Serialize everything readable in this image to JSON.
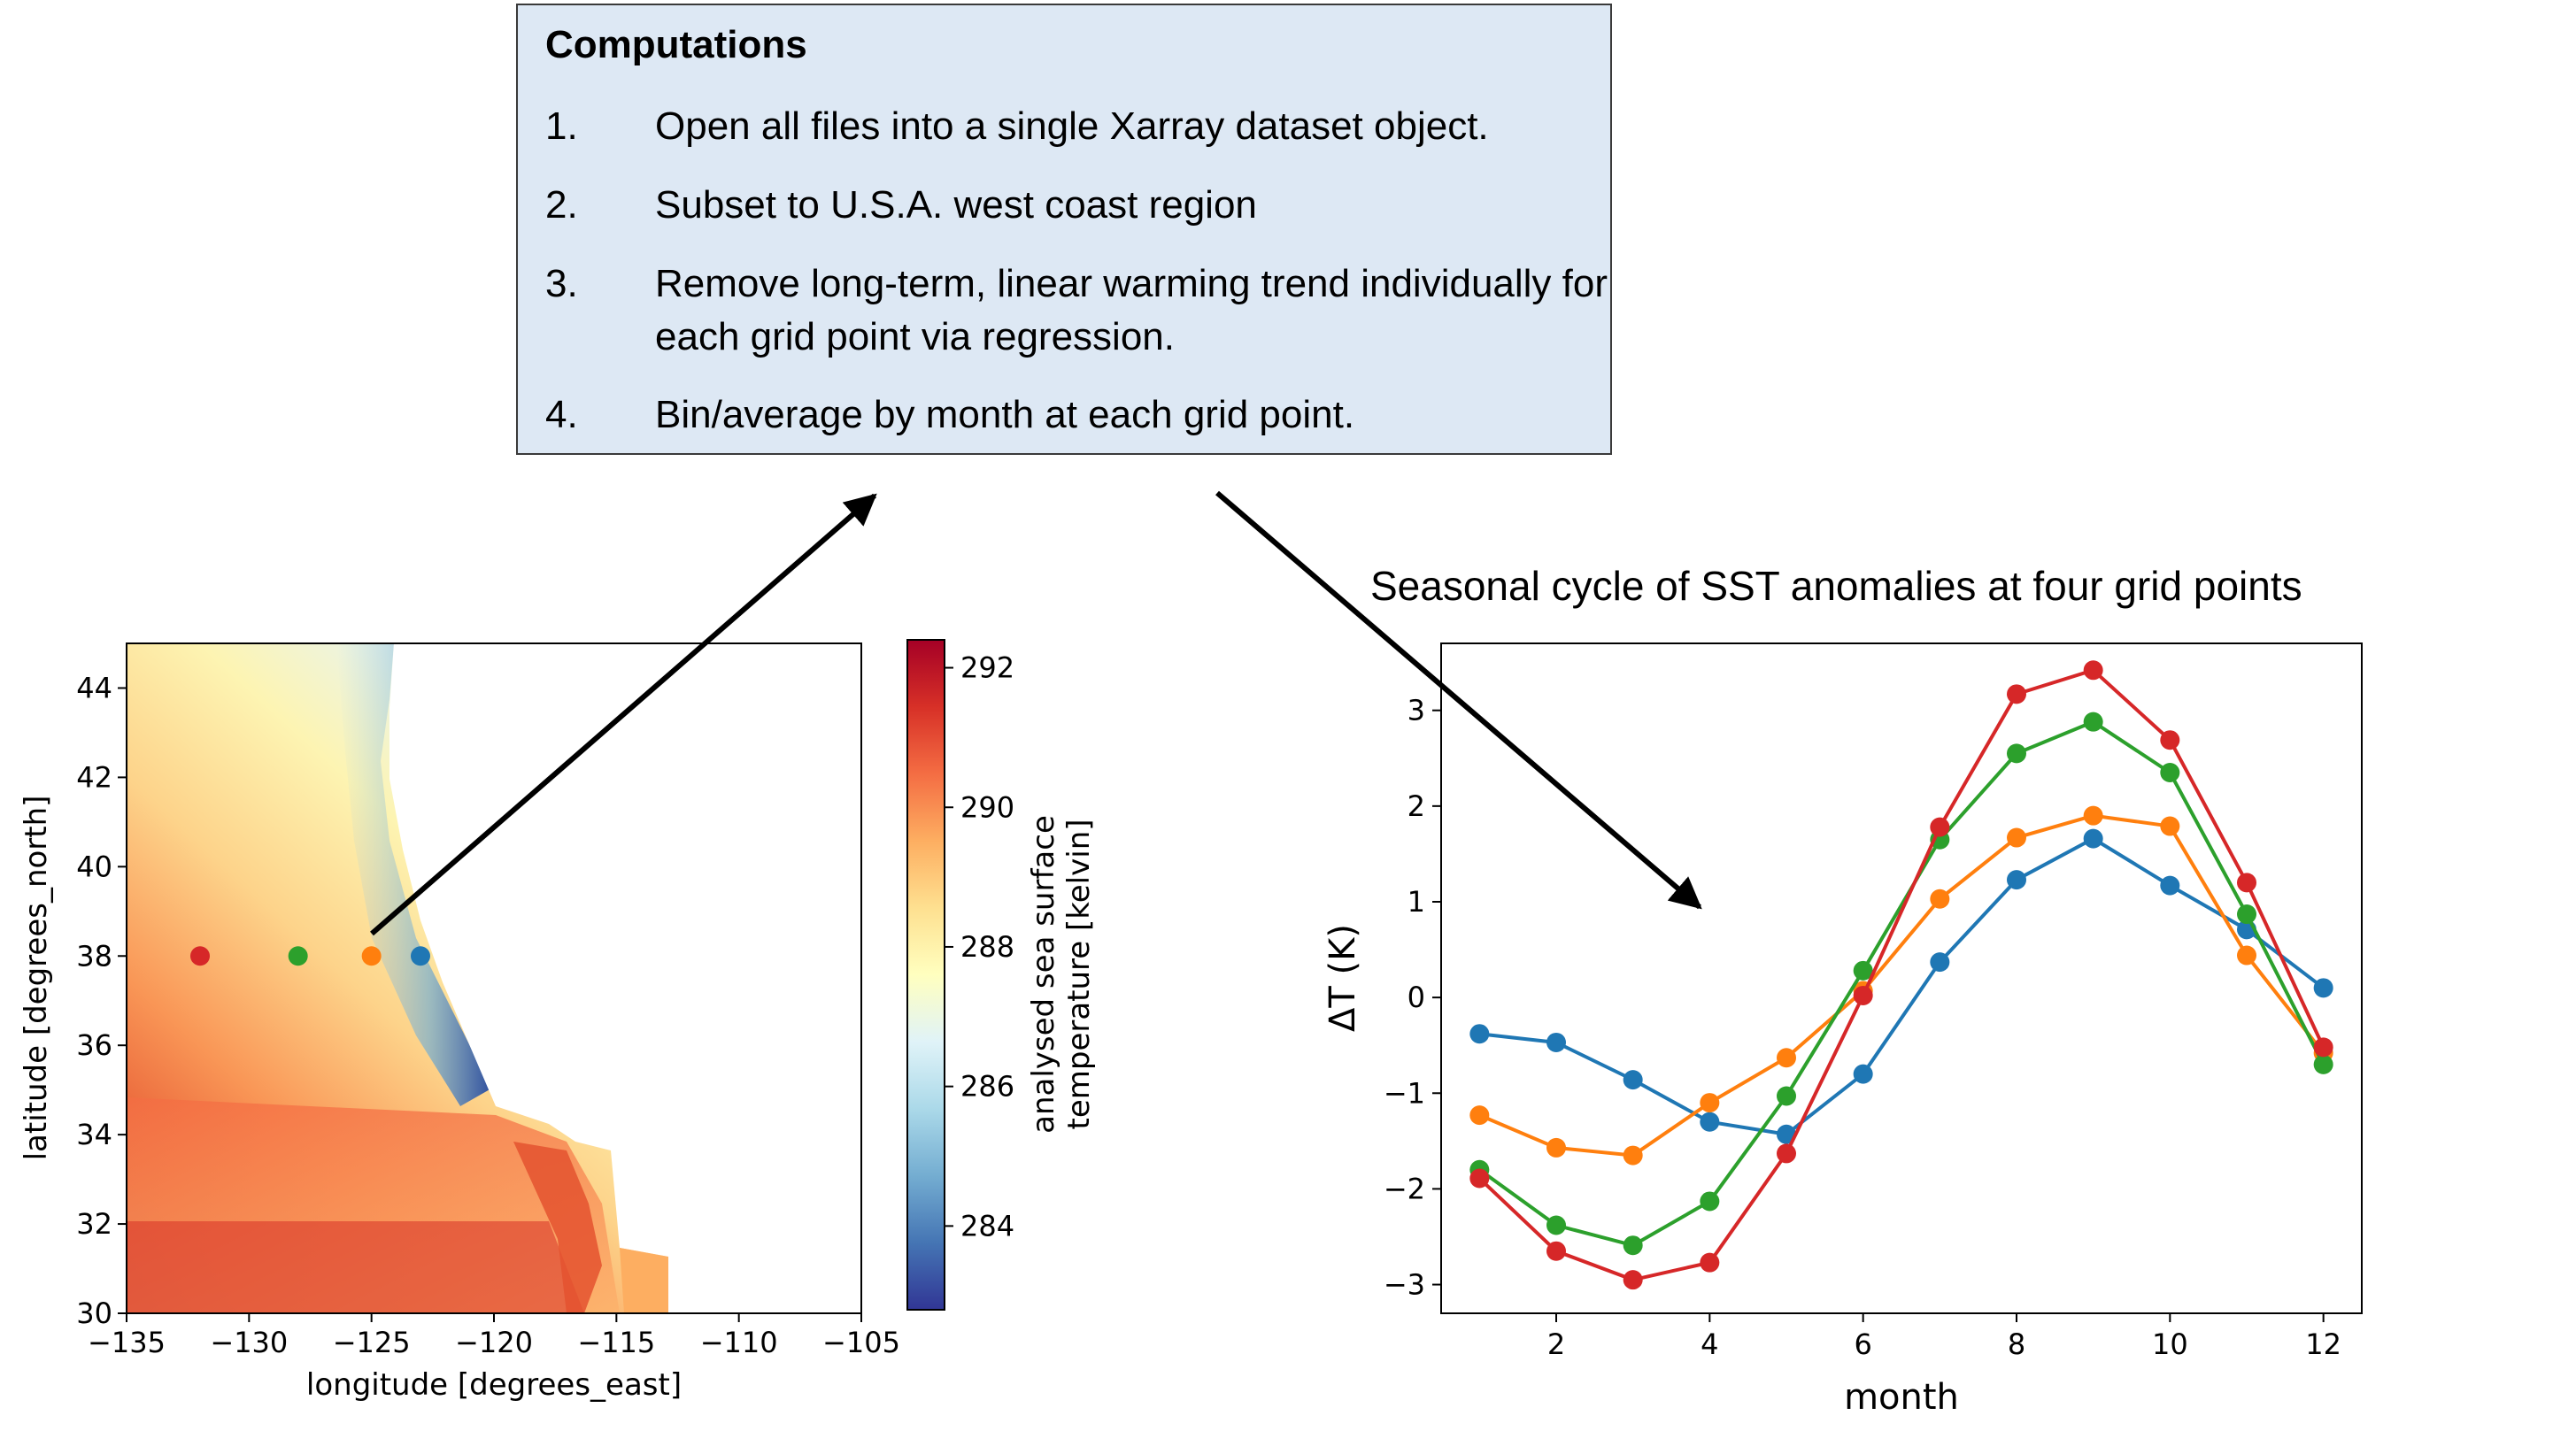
{
  "computations": {
    "title": "Computations",
    "steps": [
      {
        "num": "1.",
        "text": "Open all files into a single Xarray dataset object."
      },
      {
        "num": "2.",
        "text": "Subset to U.S.A. west coast region"
      },
      {
        "num": "3.",
        "text": "Remove long-term, linear warming trend individually for each grid point via regression."
      },
      {
        "num": "4.",
        "text": "Bin/average by month at each grid point."
      }
    ]
  },
  "chart_data": [
    {
      "type": "heatmap",
      "xlabel": "longitude [degrees_east]",
      "ylabel": "latitude [degrees_north]",
      "xlim": [
        -135,
        -105
      ],
      "ylim": [
        30,
        45
      ],
      "x_ticks": [
        -135,
        -130,
        -125,
        -120,
        -115,
        -110,
        -105
      ],
      "y_ticks": [
        30,
        32,
        34,
        36,
        38,
        40,
        42,
        44
      ],
      "colorbar": {
        "label_line1": "analysed sea surface",
        "label_line2": "temperature [kelvin]",
        "range": [
          282.8,
          292.4
        ],
        "ticks": [
          284,
          286,
          288,
          290,
          292
        ],
        "colormap": "RdYlBu_r"
      },
      "grid_points": [
        {
          "lon": -132,
          "lat": 38,
          "color": "#d62728"
        },
        {
          "lon": -128,
          "lat": 38,
          "color": "#2ca02c"
        },
        {
          "lon": -125,
          "lat": 38,
          "color": "#ff7f0e"
        },
        {
          "lon": -123,
          "lat": 38,
          "color": "#1f77b4"
        }
      ]
    },
    {
      "type": "line",
      "title": "Seasonal cycle of SST anomalies at four grid points",
      "xlabel": "month",
      "ylabel": "ΔT (K)",
      "xlim": [
        0.5,
        12.5
      ],
      "ylim": [
        -3.3,
        3.7
      ],
      "x_ticks": [
        2,
        4,
        6,
        8,
        10,
        12
      ],
      "y_ticks": [
        -3,
        -2,
        -1,
        0,
        1,
        2,
        3
      ],
      "x": [
        1,
        2,
        3,
        4,
        5,
        6,
        7,
        8,
        9,
        10,
        11,
        12
      ],
      "series": [
        {
          "color": "#1f77b4",
          "values": [
            -0.38,
            -0.47,
            -0.86,
            -1.3,
            -1.43,
            -0.8,
            0.37,
            1.23,
            1.66,
            1.17,
            0.71,
            0.1
          ]
        },
        {
          "color": "#ff7f0e",
          "values": [
            -1.23,
            -1.57,
            -1.65,
            -1.1,
            -0.63,
            0.07,
            1.03,
            1.67,
            1.9,
            1.79,
            0.44,
            -0.58
          ]
        },
        {
          "color": "#2ca02c",
          "values": [
            -1.8,
            -2.38,
            -2.59,
            -2.13,
            -1.03,
            0.28,
            1.65,
            2.55,
            2.88,
            2.35,
            0.87,
            -0.7
          ]
        },
        {
          "color": "#d62728",
          "values": [
            -1.89,
            -2.65,
            -2.95,
            -2.77,
            -1.63,
            0.02,
            1.78,
            3.17,
            3.42,
            2.69,
            1.2,
            -0.52
          ]
        }
      ]
    }
  ]
}
